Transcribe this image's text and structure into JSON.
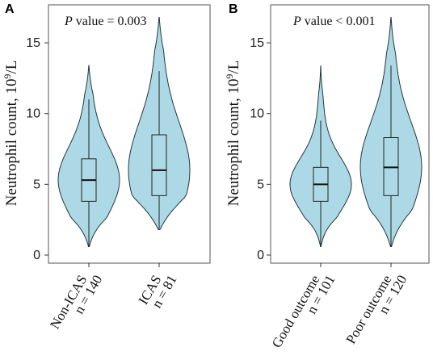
{
  "chart_data": [
    {
      "type": "violin",
      "panel_label": "A",
      "annotation": {
        "italic": "P",
        "text": " value = 0.003"
      },
      "ylabel": {
        "text": "Neutrophil count, 10",
        "sup": "9",
        "tail": "/L"
      },
      "ylim": [
        0,
        17
      ],
      "yticks": [
        0,
        5,
        10,
        15
      ],
      "groups": [
        {
          "label_line1": "Non-ICAS",
          "label_line2": "n = 140",
          "min": 0.6,
          "q1": 3.8,
          "median": 5.3,
          "q3": 6.8,
          "max": 11.0,
          "violin_max": 13.4
        },
        {
          "label_line1": "ICAS",
          "label_line2": "n = 81",
          "min": 1.8,
          "q1": 4.2,
          "median": 6.0,
          "q3": 8.5,
          "max": 13.0,
          "violin_max": 16.8
        }
      ]
    },
    {
      "type": "violin",
      "panel_label": "B",
      "annotation": {
        "italic": "P",
        "text": " value < 0.001"
      },
      "ylabel": {
        "text": "Neutrophil count, 10",
        "sup": "9",
        "tail": "/L"
      },
      "ylim": [
        0,
        17
      ],
      "yticks": [
        0,
        5,
        10,
        15
      ],
      "groups": [
        {
          "label_line1": "Good outcome",
          "label_line2": "n = 101",
          "min": 0.6,
          "q1": 3.8,
          "median": 5.0,
          "q3": 6.2,
          "max": 9.5,
          "violin_max": 13.4
        },
        {
          "label_line1": "Poor outcome",
          "label_line2": "n = 120",
          "min": 0.6,
          "q1": 4.2,
          "median": 6.2,
          "q3": 8.3,
          "max": 13.4,
          "violin_max": 16.8
        }
      ]
    }
  ]
}
